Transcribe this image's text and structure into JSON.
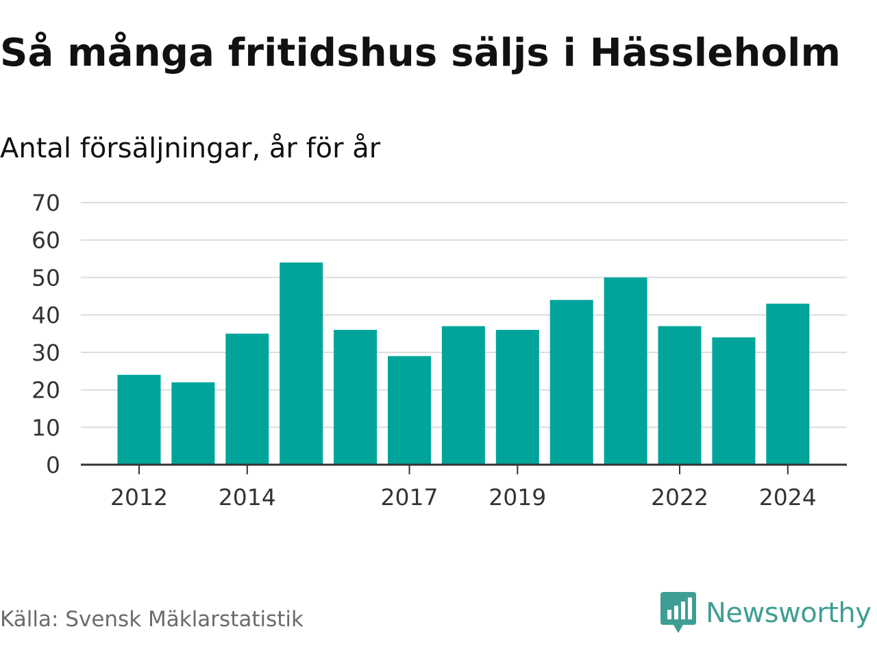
{
  "title": "Så många fritidshus säljs i Hässleholm",
  "subtitle": "Antal försäljningar, år för år",
  "source": "Källa: Svensk Mäklarstatistik",
  "brand": {
    "name": "Newsworthy",
    "icon": "newsworthy-logo-icon",
    "color": "#3f9e94"
  },
  "chart_data": {
    "type": "bar",
    "categories": [
      "2012",
      "2013",
      "2014",
      "2015",
      "2016",
      "2017",
      "2018",
      "2019",
      "2020",
      "2021",
      "2022",
      "2023",
      "2024"
    ],
    "values": [
      24,
      22,
      35,
      54,
      36,
      29,
      37,
      36,
      44,
      50,
      37,
      34,
      43
    ],
    "x_tick_labels": [
      "2012",
      "2014",
      "2017",
      "2019",
      "2022",
      "2024"
    ],
    "y_ticks": [
      0,
      10,
      20,
      30,
      40,
      50,
      60,
      70
    ],
    "ylim": [
      0,
      70
    ],
    "grid": true,
    "bar_color": "#00a49a",
    "grid_color": "#dcdcdc",
    "axis_color": "#333333"
  }
}
